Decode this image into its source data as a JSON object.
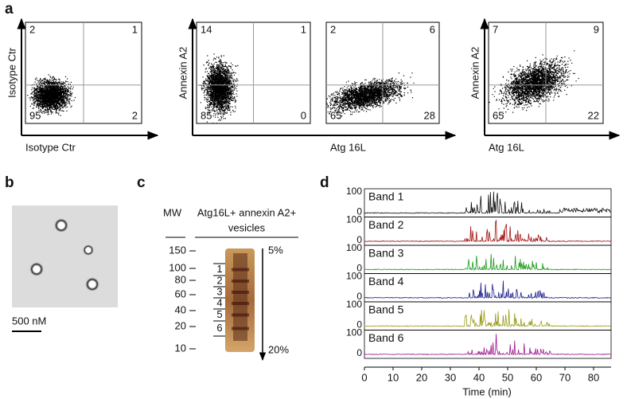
{
  "panel_a": {
    "label": "a",
    "plots": [
      {
        "y_label": "Isotype Ctr",
        "x_label": "Isotype Ctr",
        "quadrants": [
          2,
          1,
          95,
          2
        ]
      },
      {
        "y_label": "Annexin A2",
        "quadrants": [
          14,
          1,
          85,
          0
        ]
      },
      {
        "x_label": "Atg 16L",
        "quadrants": [
          2,
          6,
          65,
          28
        ]
      },
      {
        "y_label": "Annexin A2",
        "x_label": "Atg 16L",
        "quadrants": [
          7,
          9,
          65,
          22
        ]
      }
    ]
  },
  "panel_b": {
    "label": "b",
    "scale_bar": "500 nM"
  },
  "panel_c": {
    "label": "c",
    "mw_header": "MW",
    "lane_header": [
      "Atg16L+ annexin A2+",
      "vesicles"
    ],
    "mw_ticks": [
      150,
      100,
      80,
      60,
      40,
      20,
      10
    ],
    "bands": [
      1,
      2,
      3,
      4,
      5,
      6
    ],
    "gradient_top": "5%",
    "gradient_bottom": "20%"
  },
  "panel_d": {
    "label": "d",
    "traces": [
      "Band 1",
      "Band 2",
      "Band 3",
      "Band 4",
      "Band 5",
      "Band 6"
    ],
    "trace_ticks": [
      100,
      0
    ],
    "x_ticks": [
      0,
      10,
      20,
      30,
      40,
      50,
      60,
      70,
      80
    ],
    "x_label": "Time (min)"
  }
}
